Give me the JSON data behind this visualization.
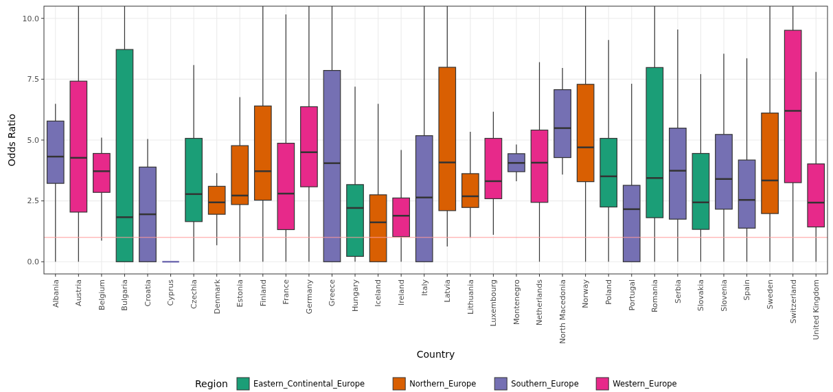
{
  "chart_data": {
    "type": "box",
    "xlabel": "Country",
    "ylabel": "Odds Ratio",
    "legend_title": "Region",
    "legend": "bottom",
    "grid": true,
    "categories": [
      "Albania",
      "Austria",
      "Belgium",
      "Bulgaria",
      "Croatia",
      "Cyprus",
      "Czechia",
      "Denmark",
      "Estonia",
      "Finland",
      "France",
      "Germany",
      "Greece",
      "Hungary",
      "Iceland",
      "Ireland",
      "Italy",
      "Latvia",
      "Lithuania",
      "Luxembourg",
      "Montenegro",
      "Netherlands",
      "North Macedonia",
      "Norway",
      "Poland",
      "Portugal",
      "Romania",
      "Serbia",
      "Slovakia",
      "Slovenia",
      "Spain",
      "Sweden",
      "Switzerland",
      "United Kingdom"
    ],
    "ylim": [
      -0.5,
      10.5
    ],
    "yticks": [
      {
        "value": 0,
        "label": "0.0"
      },
      {
        "value": 2.5,
        "label": "2.5"
      },
      {
        "value": 5,
        "label": "5.0"
      },
      {
        "value": 7.5,
        "label": "7.5"
      },
      {
        "value": 10,
        "label": "10.0"
      }
    ],
    "ref_lines": [
      {
        "axis": "y",
        "value": 1,
        "label": null,
        "color": "#ff9999"
      }
    ],
    "series": [
      {
        "name": "Eastern_Continental_Europe",
        "color": "#1b9e77",
        "boxes": [
          null,
          null,
          null,
          {
            "low": 0,
            "q1": 0,
            "median": 1.83,
            "q3": 8.72,
            "high": 10.5
          },
          null,
          null,
          {
            "low": 0,
            "q1": 1.65,
            "median": 2.78,
            "q3": 5.07,
            "high": 8.08
          },
          null,
          null,
          null,
          null,
          null,
          null,
          {
            "low": 0,
            "q1": 0.22,
            "median": 2.21,
            "q3": 3.17,
            "high": 7.19
          },
          null,
          null,
          null,
          null,
          null,
          null,
          null,
          null,
          null,
          null,
          {
            "low": 0,
            "q1": 2.25,
            "median": 3.51,
            "q3": 5.07,
            "high": 9.11
          },
          null,
          {
            "low": 0,
            "q1": 1.81,
            "median": 3.44,
            "q3": 7.98,
            "high": 10.5
          },
          null,
          {
            "low": 0,
            "q1": 1.33,
            "median": 2.44,
            "q3": 4.45,
            "high": 7.71
          },
          null,
          null,
          null,
          null,
          null
        ]
      },
      {
        "name": "Northern_Europe",
        "color": "#d95f02",
        "boxes": [
          null,
          null,
          null,
          null,
          null,
          null,
          null,
          {
            "low": 0.68,
            "q1": 1.95,
            "median": 2.44,
            "q3": 3.1,
            "high": 3.64
          },
          {
            "low": 0,
            "q1": 2.35,
            "median": 2.72,
            "q3": 4.77,
            "high": 6.76
          },
          {
            "low": 0,
            "q1": 2.53,
            "median": 3.72,
            "q3": 6.4,
            "high": 10.5
          },
          null,
          null,
          null,
          null,
          {
            "low": 0,
            "q1": 0,
            "median": 1.62,
            "q3": 2.75,
            "high": 6.49
          },
          null,
          null,
          {
            "low": 0.63,
            "q1": 2.1,
            "median": 4.08,
            "q3": 7.99,
            "high": 10.5
          },
          {
            "low": 0.99,
            "q1": 2.23,
            "median": 2.69,
            "q3": 3.62,
            "high": 5.34
          },
          null,
          null,
          null,
          null,
          {
            "low": 0,
            "q1": 3.29,
            "median": 4.7,
            "q3": 7.29,
            "high": 10.5
          },
          null,
          null,
          null,
          null,
          null,
          null,
          null,
          {
            "low": 0,
            "q1": 1.98,
            "median": 3.34,
            "q3": 6.11,
            "high": 10.5
          },
          null,
          null
        ]
      },
      {
        "name": "Southern_Europe",
        "color": "#7570b3",
        "boxes": [
          {
            "low": 0,
            "q1": 3.22,
            "median": 4.32,
            "q3": 5.78,
            "high": 6.49
          },
          null,
          null,
          null,
          {
            "low": 0,
            "q1": 0,
            "median": 1.95,
            "q3": 3.89,
            "high": 5.04
          },
          {
            "low": 0,
            "q1": 0,
            "median": 0,
            "q3": 0,
            "high": 0
          },
          null,
          null,
          null,
          null,
          null,
          null,
          {
            "low": 0,
            "q1": 0,
            "median": 4.05,
            "q3": 7.86,
            "high": 10.5
          },
          null,
          null,
          null,
          {
            "low": 0,
            "q1": 0,
            "median": 2.64,
            "q3": 5.18,
            "high": 10.5
          },
          null,
          null,
          null,
          {
            "low": 3.31,
            "q1": 3.7,
            "median": 4.06,
            "q3": 4.44,
            "high": 4.82
          },
          null,
          {
            "low": 3.58,
            "q1": 4.28,
            "median": 5.49,
            "q3": 7.07,
            "high": 7.96
          },
          null,
          null,
          {
            "low": 0,
            "q1": 0,
            "median": 2.16,
            "q3": 3.14,
            "high": 7.31
          },
          null,
          {
            "low": 0,
            "q1": 1.75,
            "median": 3.74,
            "q3": 5.49,
            "high": 9.54
          },
          null,
          {
            "low": 0,
            "q1": 2.16,
            "median": 3.4,
            "q3": 5.23,
            "high": 8.55
          },
          {
            "low": 0,
            "q1": 1.38,
            "median": 2.54,
            "q3": 4.18,
            "high": 8.36
          },
          null,
          null,
          null
        ]
      },
      {
        "name": "Western_Europe",
        "color": "#e7298a",
        "boxes": [
          null,
          {
            "low": 0,
            "q1": 2.04,
            "median": 4.27,
            "q3": 7.42,
            "high": 10.5
          },
          {
            "low": 0.87,
            "q1": 2.85,
            "median": 3.72,
            "q3": 4.45,
            "high": 5.1
          },
          null,
          null,
          null,
          null,
          null,
          null,
          null,
          {
            "low": 0,
            "q1": 1.32,
            "median": 2.8,
            "q3": 4.87,
            "high": 10.16
          },
          {
            "low": 0,
            "q1": 3.08,
            "median": 4.5,
            "q3": 6.37,
            "high": 10.5
          },
          null,
          null,
          null,
          {
            "low": 0,
            "q1": 1.03,
            "median": 1.89,
            "q3": 2.62,
            "high": 4.59
          },
          null,
          null,
          null,
          {
            "low": 1.11,
            "q1": 2.59,
            "median": 3.31,
            "q3": 5.07,
            "high": 6.16
          },
          null,
          {
            "low": 0,
            "q1": 2.44,
            "median": 4.07,
            "q3": 5.41,
            "high": 8.2
          },
          null,
          null,
          null,
          null,
          null,
          null,
          null,
          null,
          null,
          null,
          {
            "low": 0,
            "q1": 3.25,
            "median": 6.2,
            "q3": 9.51,
            "high": 10.5
          },
          {
            "low": 0,
            "q1": 1.43,
            "median": 2.43,
            "q3": 4.02,
            "high": 7.8
          }
        ]
      }
    ]
  }
}
